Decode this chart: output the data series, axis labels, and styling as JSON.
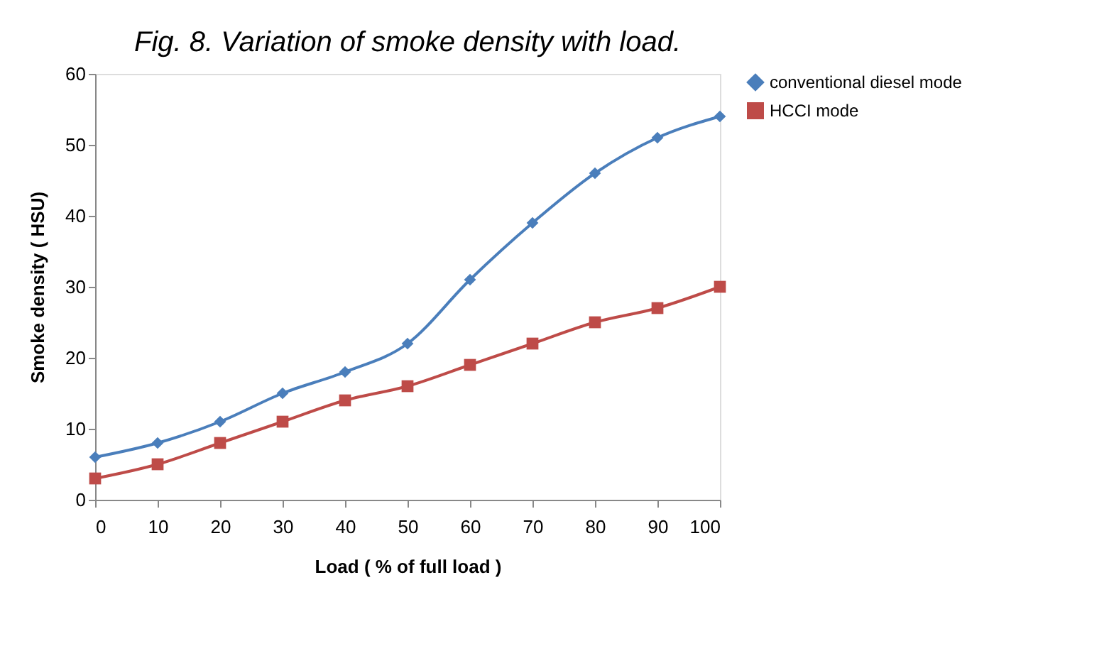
{
  "chart_data": {
    "type": "line",
    "title": "Fig. 8. Variation of smoke density with load.",
    "xlabel": "Load ( % of full load )",
    "ylabel": "Smoke density  ( HSU)",
    "x": [
      0,
      10,
      20,
      30,
      40,
      50,
      60,
      70,
      80,
      90,
      100
    ],
    "series": [
      {
        "name": "conventional diesel mode",
        "color": "#4a7ebb",
        "marker": "diamond",
        "values": [
          6,
          8,
          11,
          15,
          18,
          22,
          31,
          39,
          46,
          51,
          54
        ]
      },
      {
        "name": "HCCI mode",
        "color": "#be4b48",
        "marker": "square",
        "values": [
          3,
          5,
          8,
          11,
          14,
          16,
          19,
          22,
          25,
          27,
          30
        ]
      }
    ],
    "xlim": [
      0,
      100
    ],
    "xticks": [
      0,
      10,
      20,
      30,
      40,
      50,
      60,
      70,
      80,
      90,
      100
    ],
    "ylim": [
      0,
      60
    ],
    "yticks": [
      0,
      10,
      20,
      30,
      40,
      50,
      60
    ],
    "grid": false,
    "legend": "top right",
    "line_style": "solid"
  }
}
